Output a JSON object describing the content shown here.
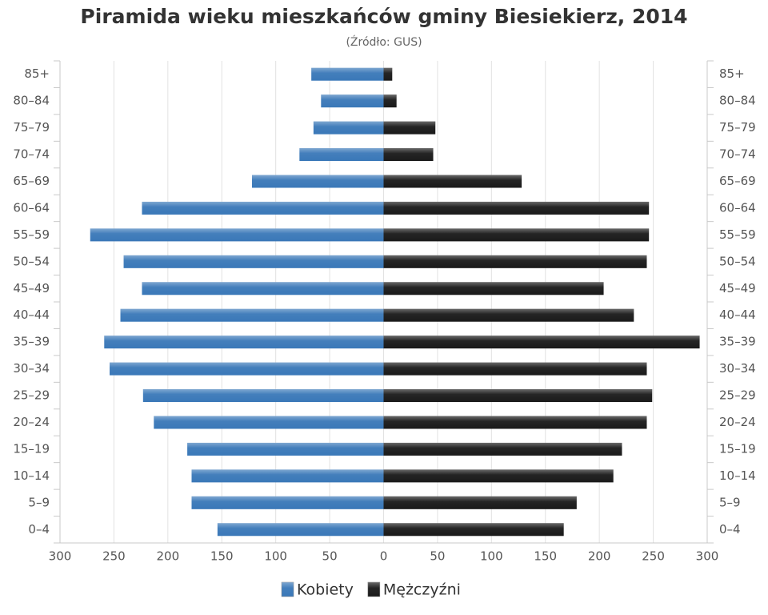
{
  "chart_data": {
    "type": "pyramid",
    "title": "Piramida wieku mieszkańców gminy Biesiekierz, 2014",
    "subtitle": "(Źródło: GUS)",
    "categories": [
      "0–4",
      "5–9",
      "10–14",
      "15–19",
      "20–24",
      "25–29",
      "30–34",
      "35–39",
      "40–44",
      "45–49",
      "50–54",
      "55–59",
      "60–64",
      "65–69",
      "70–74",
      "75–79",
      "80–84",
      "85+"
    ],
    "series": [
      {
        "name": "Kobiety",
        "color": "#3a78b8",
        "side": "left",
        "values": [
          154,
          178,
          178,
          182,
          213,
          223,
          254,
          259,
          244,
          224,
          241,
          272,
          224,
          122,
          78,
          65,
          58,
          67
        ]
      },
      {
        "name": "Mężczyźni",
        "color": "#1a1a1a",
        "side": "right",
        "values": [
          167,
          179,
          213,
          221,
          244,
          249,
          244,
          293,
          232,
          204,
          244,
          246,
          246,
          128,
          46,
          48,
          12,
          8
        ]
      }
    ],
    "xlim": [
      -300,
      300
    ],
    "xticks": [
      {
        "value": -300,
        "label": "300"
      },
      {
        "value": -250,
        "label": "250"
      },
      {
        "value": -200,
        "label": "200"
      },
      {
        "value": -150,
        "label": "150"
      },
      {
        "value": -100,
        "label": "100"
      },
      {
        "value": -50,
        "label": "50"
      },
      0,
      50,
      100,
      150,
      200,
      250,
      300
    ],
    "grid": true
  }
}
